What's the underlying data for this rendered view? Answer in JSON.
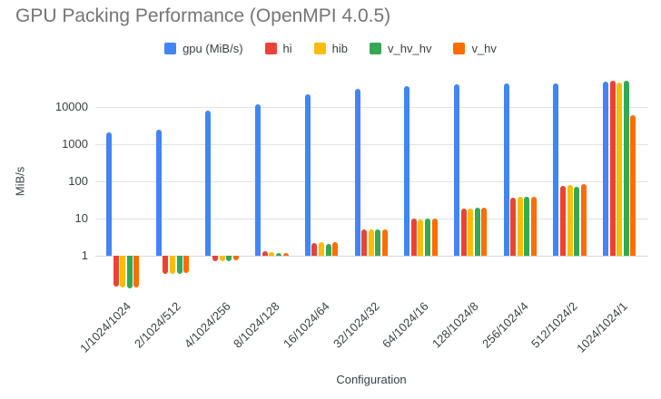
{
  "title": "GPU Packing Performance (OpenMPI 4.0.5)",
  "legend": {
    "items": [
      {
        "label": "gpu (MiB/s)",
        "color": "#4285F4"
      },
      {
        "label": "hi",
        "color": "#EA4335"
      },
      {
        "label": "hib",
        "color": "#FBBC04"
      },
      {
        "label": "v_hv_hv",
        "color": "#34A853"
      },
      {
        "label": "v_hv",
        "color": "#FF6D01"
      }
    ]
  },
  "axes": {
    "y_title": "MiB/s",
    "x_title": "Configuration",
    "y_tick_labels": [
      "1",
      "10",
      "100",
      "1000",
      "10000"
    ]
  },
  "chart_data": {
    "type": "bar",
    "title": "GPU Packing Performance (OpenMPI 4.0.5)",
    "xlabel": "Configuration",
    "ylabel": "MiB/s",
    "yscale": "log",
    "y_ticks": [
      1,
      10,
      100,
      1000,
      10000
    ],
    "ylim": [
      0.1,
      60000
    ],
    "grid": true,
    "legend_position": "top",
    "categories": [
      "1/1024/1024",
      "2/1024/512",
      "4/1024/256",
      "8/1024/128",
      "16/1024/64",
      "32/1024/32",
      "64/1024/16",
      "128/1024/8",
      "256/1024/4",
      "512/1024/2",
      "1024/1024/1"
    ],
    "series": [
      {
        "name": "gpu (MiB/s)",
        "color": "#4285F4",
        "values": [
          2100,
          2500,
          7800,
          12000,
          22000,
          31000,
          37500,
          40500,
          43000,
          42000,
          47000
        ]
      },
      {
        "name": "hi",
        "color": "#EA4335",
        "values": [
          0.15,
          0.32,
          0.7,
          1.3,
          2.2,
          5.0,
          10,
          19,
          37,
          75,
          51000
        ]
      },
      {
        "name": "hib",
        "color": "#FBBC04",
        "values": [
          0.14,
          0.33,
          0.72,
          1.25,
          2.3,
          5.0,
          9.7,
          19,
          38,
          82,
          46000
        ]
      },
      {
        "name": "v_hv_hv",
        "color": "#34A853",
        "values": [
          0.13,
          0.32,
          0.71,
          1.2,
          2.1,
          5.0,
          10,
          19.5,
          38,
          73,
          52000
        ]
      },
      {
        "name": "v_hv",
        "color": "#FF6D01",
        "values": [
          0.14,
          0.34,
          0.74,
          1.2,
          2.3,
          5.2,
          10.3,
          20,
          38.5,
          83,
          6200
        ]
      }
    ]
  }
}
